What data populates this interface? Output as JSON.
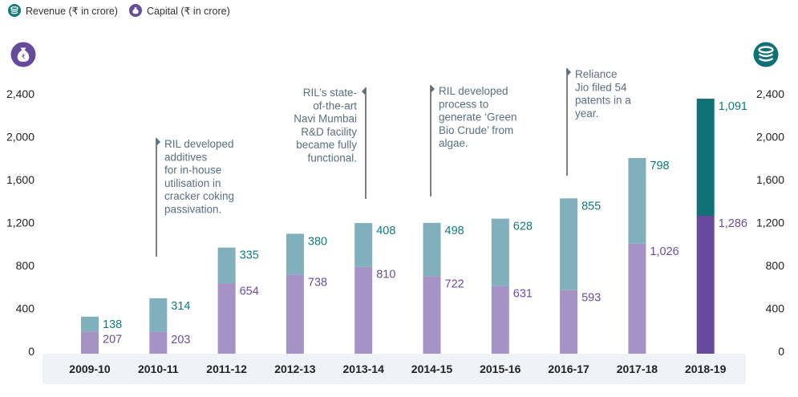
{
  "legend": {
    "revenue_label": "Revenue (₹ in crore)",
    "capital_label": "Capital (₹ in crore)",
    "revenue_icon": "coins-stack-icon",
    "capital_icon": "money-bag-icon"
  },
  "colors": {
    "revenue": "#7fb0bb",
    "capital": "#a693c5",
    "revenue_highlight": "#0f7175",
    "capital_highlight": "#664a9c",
    "revenue_text": "#127a7c",
    "capital_text": "#6a4d9e",
    "note_text": "#5a6f82",
    "axis_band": "#eff2f6"
  },
  "chart_data": {
    "type": "bar",
    "stacked": true,
    "title": "",
    "xlabel": "",
    "ylabel_left": "Capital (₹ in crore)",
    "ylabel_right": "Revenue (₹ in crore)",
    "categories": [
      "2009-10",
      "2010-11",
      "2011-12",
      "2012-13",
      "2013-14",
      "2014-15",
      "2015-16",
      "2016-17",
      "2017-18",
      "2018-19"
    ],
    "series": [
      {
        "name": "Capital (₹ in crore)",
        "values": [
          207,
          203,
          654,
          738,
          810,
          722,
          631,
          593,
          1026,
          1286
        ],
        "labels": [
          "207",
          "203",
          "654",
          "738",
          "810",
          "722",
          "631",
          "593",
          "1,026",
          "1,286"
        ]
      },
      {
        "name": "Revenue (₹ in crore)",
        "values": [
          138,
          314,
          335,
          380,
          408,
          498,
          628,
          855,
          798,
          1091
        ],
        "labels": [
          "138",
          "314",
          "335",
          "380",
          "408",
          "498",
          "628",
          "855",
          "798",
          "1,091"
        ]
      }
    ],
    "highlight_category": "2018-19",
    "ylim": [
      0,
      2400
    ],
    "yticks": [
      0,
      400,
      800,
      1200,
      1600,
      2000,
      2400
    ],
    "ytick_labels": [
      "0",
      "400",
      "800",
      "1,200",
      "1,600",
      "2,000",
      "2,400"
    ],
    "grid": false,
    "legend_position": "top-left",
    "annotations": [
      {
        "between": [
          "2009-10",
          "2010-11"
        ],
        "side": "right",
        "lines": [
          "RIL developed",
          "additives",
          "for in-house",
          "utilisation in",
          "cracker coking",
          "passivation."
        ]
      },
      {
        "between": [
          "2012-13",
          "2013-14"
        ],
        "side": "left",
        "lines": [
          "RIL’s state-",
          "of-the-art",
          "Navi Mumbai",
          "R&D facility",
          "became fully",
          "functional."
        ]
      },
      {
        "between": [
          "2013-14",
          "2014-15"
        ],
        "side": "right",
        "lines": [
          "RIL developed",
          "process to",
          "generate ‘Green",
          "Bio Crude’ from",
          "algae."
        ]
      },
      {
        "between": [
          "2015-16",
          "2016-17"
        ],
        "side": "right",
        "lines": [
          "Reliance",
          "Jio filed 54",
          "patents in a",
          "year."
        ]
      }
    ]
  }
}
